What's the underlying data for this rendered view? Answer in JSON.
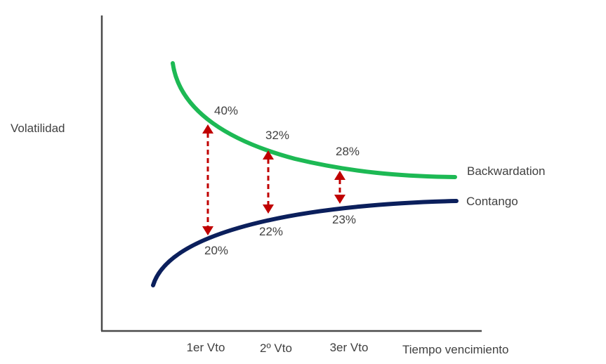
{
  "chart_data": {
    "type": "line",
    "title": "",
    "ylabel": "Volatilidad",
    "xlabel": "Tiempo vencimiento",
    "categories": [
      "1er Vto",
      "2º Vto",
      "3er Vto"
    ],
    "series": [
      {
        "name": "Backwardation",
        "color": "#1db954",
        "values": [
          40,
          32,
          28
        ],
        "labels": [
          "40%",
          "32%",
          "28%"
        ]
      },
      {
        "name": "Contango",
        "color": "#0b1f5c",
        "values": [
          20,
          22,
          23
        ],
        "labels": [
          "20%",
          "22%",
          "23%"
        ]
      }
    ],
    "arrow_color": "#c00000",
    "grid": false,
    "legend": "inline-right"
  }
}
